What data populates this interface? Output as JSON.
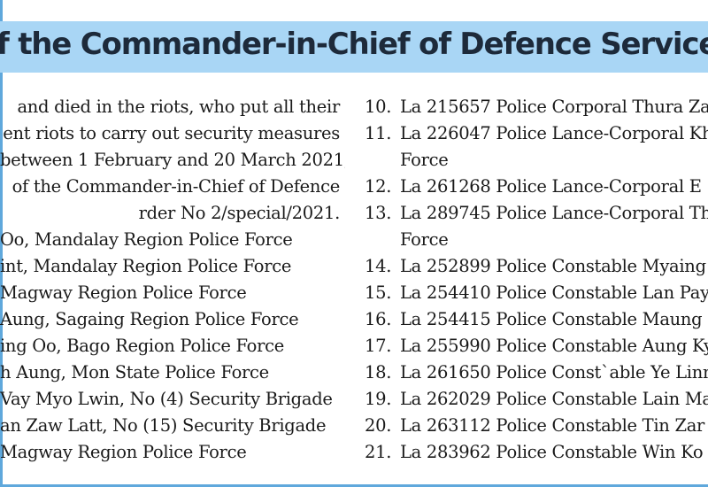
{
  "banner": {
    "title": "f the Commander-in-Chief of Defence Services issu"
  },
  "left_intro": [
    "and died in the riots, who put all their",
    "ent riots to carry out security measures",
    "between 1 February and 20 March 2021,",
    "of the Commander-in-Chief of Defence",
    "rder No 2/special/2021."
  ],
  "left_items": [
    "Oo, Mandalay Region Police Force",
    "int, Mandalay Region Police Force",
    "Magway Region Police Force",
    "Aung, Sagaing Region Police Force",
    "ing Oo, Bago Region Police Force",
    "h Aung, Mon State Police Force",
    "Vay Myo Lwin, No (4) Security Brigade",
    "an Zaw Latt, No (15) Security Brigade",
    "Magway Region Police Force"
  ],
  "right_items": [
    {
      "num": "10.",
      "text": "La 215657 Police Corporal Thura Za",
      "cont": ""
    },
    {
      "num": "11.",
      "text": "La 226047 Police Lance-Corporal Kh",
      "cont": "Force"
    },
    {
      "num": "12.",
      "text": "La 261268 Police Lance-Corporal E",
      "cont": ""
    },
    {
      "num": "13.",
      "text": "La 289745 Police Lance-Corporal Th",
      "cont": "Force"
    },
    {
      "num": "14.",
      "text": "La 252899 Police Constable Myaing",
      "cont": ""
    },
    {
      "num": "15.",
      "text": "La 254410 Police Constable Lan Pay",
      "cont": ""
    },
    {
      "num": "16.",
      "text": "La 254415 Police Constable Maung",
      "cont": ""
    },
    {
      "num": "17.",
      "text": "La 255990 Police Constable Aung Ky",
      "cont": ""
    },
    {
      "num": "18.",
      "text": "La 261650 Police Const`able Ye Linn",
      "cont": ""
    },
    {
      "num": "19.",
      "text": "La 262029 Police Constable Lain Ma",
      "cont": ""
    },
    {
      "num": "20.",
      "text": "La 263112 Police Constable Tin Zar",
      "cont": ""
    },
    {
      "num": "21.",
      "text": "La 283962 Police Constable Win Ko",
      "cont": ""
    }
  ]
}
